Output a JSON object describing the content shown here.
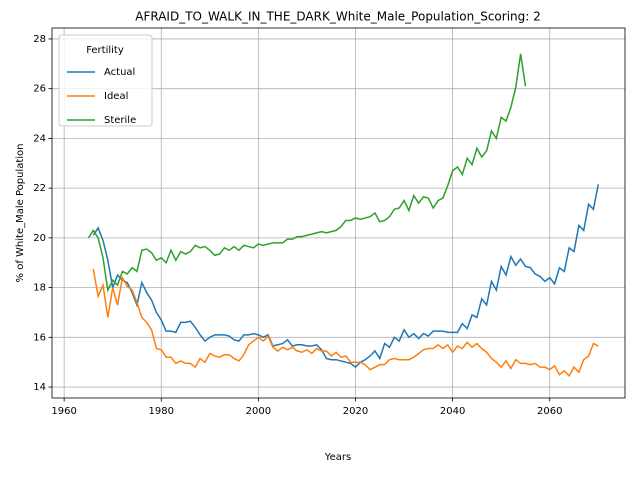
{
  "chart_data": {
    "type": "line",
    "title": "AFRAID_TO_WALK_IN_THE_DARK_White_Male_Population_Scoring: 2",
    "xlabel": "Years",
    "ylabel": "% of White_Male Population",
    "x": [
      1965,
      1966,
      1967,
      1968,
      1969,
      1970,
      1971,
      1972,
      1973,
      1974,
      1975,
      1976,
      1977,
      1978,
      1979,
      1980,
      1981,
      1982,
      1983,
      1984,
      1985,
      1986,
      1987,
      1988,
      1989,
      1990,
      1991,
      1992,
      1993,
      1994,
      1995,
      1996,
      1997,
      1998,
      1999,
      2000,
      2001,
      2002,
      2003,
      2004,
      2005,
      2006,
      2007,
      2008,
      2009,
      2010,
      2011,
      2012,
      2013,
      2014,
      2015,
      2016,
      2017,
      2018,
      2019,
      2020,
      2021,
      2022,
      2023,
      2024,
      2025,
      2026,
      2027,
      2028,
      2029,
      2030,
      2031,
      2032,
      2033,
      2034,
      2035,
      2036,
      2037,
      2038,
      2039,
      2040,
      2041,
      2042,
      2043,
      2044,
      2045,
      2046,
      2047,
      2048,
      2049,
      2050,
      2051,
      2052,
      2053,
      2054,
      2055,
      2056,
      2057,
      2058,
      2059,
      2060,
      2061,
      2062,
      2063,
      2064,
      2065,
      2066,
      2067,
      2068,
      2069,
      2070
    ],
    "series": [
      {
        "name": "Actual",
        "color": "#1f77b4",
        "values": [
          null,
          20.1,
          20.4,
          19.9,
          19.1,
          18.0,
          18.5,
          18.3,
          18.2,
          17.8,
          17.3,
          18.2,
          17.8,
          17.5,
          17.0,
          16.7,
          16.25,
          16.25,
          16.2,
          16.6,
          16.6,
          16.65,
          16.4,
          16.1,
          15.85,
          16.0,
          16.1,
          16.1,
          16.1,
          16.05,
          15.9,
          15.85,
          16.1,
          16.1,
          16.15,
          16.1,
          16.0,
          16.1,
          15.65,
          15.7,
          15.75,
          15.9,
          15.65,
          15.7,
          15.7,
          15.65,
          15.65,
          15.7,
          15.5,
          15.15,
          15.1,
          15.1,
          15.05,
          15.0,
          14.95,
          14.8,
          15.0,
          15.1,
          15.25,
          15.45,
          15.15,
          15.75,
          15.6,
          16.0,
          15.85,
          16.3,
          16.0,
          16.15,
          15.95,
          16.15,
          16.05,
          16.25,
          16.25,
          16.25,
          16.2,
          16.2,
          16.2,
          16.55,
          16.35,
          16.9,
          16.8,
          17.55,
          17.3,
          18.25,
          17.9,
          18.85,
          18.5,
          19.25,
          18.9,
          19.15,
          18.85,
          18.8,
          18.55,
          18.45,
          18.25,
          18.4,
          18.15,
          18.8,
          18.65,
          19.6,
          19.45,
          20.5,
          20.3,
          21.35,
          21.15,
          22.15
        ]
      },
      {
        "name": "Ideal",
        "color": "#ff7f0e",
        "values": [
          null,
          18.75,
          17.65,
          18.1,
          16.8,
          18.0,
          17.3,
          18.4,
          18.05,
          17.9,
          17.4,
          16.8,
          16.6,
          16.3,
          15.55,
          15.5,
          15.2,
          15.2,
          14.95,
          15.05,
          14.95,
          14.95,
          14.8,
          15.15,
          15.0,
          15.35,
          15.25,
          15.2,
          15.3,
          15.3,
          15.15,
          15.05,
          15.3,
          15.7,
          15.85,
          16.0,
          15.85,
          16.05,
          15.6,
          15.45,
          15.6,
          15.5,
          15.6,
          15.45,
          15.4,
          15.5,
          15.35,
          15.55,
          15.45,
          15.45,
          15.25,
          15.4,
          15.2,
          15.25,
          15.0,
          15.0,
          15.0,
          14.9,
          14.7,
          14.8,
          14.9,
          14.9,
          15.1,
          15.15,
          15.1,
          15.1,
          15.1,
          15.2,
          15.35,
          15.5,
          15.55,
          15.55,
          15.7,
          15.55,
          15.7,
          15.4,
          15.65,
          15.55,
          15.8,
          15.6,
          15.75,
          15.55,
          15.4,
          15.15,
          15.0,
          14.8,
          15.05,
          14.75,
          15.1,
          14.95,
          14.95,
          14.9,
          14.95,
          14.8,
          14.8,
          14.7,
          14.85,
          14.5,
          14.65,
          14.45,
          14.8,
          14.6,
          15.1,
          15.25,
          15.75,
          15.65
        ]
      },
      {
        "name": "Sterile",
        "color": "#2ca02c",
        "values": [
          20.0,
          20.3,
          20.0,
          19.2,
          17.9,
          18.3,
          18.1,
          18.65,
          18.55,
          18.8,
          18.65,
          19.5,
          19.55,
          19.4,
          19.1,
          19.2,
          19.0,
          19.5,
          19.1,
          19.45,
          19.35,
          19.45,
          19.7,
          19.6,
          19.65,
          19.5,
          19.3,
          19.35,
          19.6,
          19.5,
          19.65,
          19.5,
          19.7,
          19.65,
          19.6,
          19.75,
          19.7,
          19.75,
          19.8,
          19.8,
          19.8,
          19.95,
          19.95,
          20.05,
          20.05,
          20.1,
          20.15,
          20.2,
          20.25,
          20.2,
          20.25,
          20.3,
          20.45,
          20.7,
          20.7,
          20.8,
          20.75,
          20.8,
          20.85,
          21.0,
          20.65,
          20.7,
          20.85,
          21.15,
          21.2,
          21.5,
          21.1,
          21.7,
          21.4,
          21.65,
          21.6,
          21.2,
          21.5,
          21.6,
          22.1,
          22.7,
          22.85,
          22.55,
          23.2,
          22.95,
          23.6,
          23.25,
          23.5,
          24.3,
          24.0,
          24.85,
          24.7,
          25.25,
          26.05,
          27.4,
          26.1,
          null,
          null,
          null,
          null,
          null,
          null,
          null,
          null,
          null,
          null,
          null,
          null,
          null,
          null,
          null
        ]
      }
    ],
    "xlim": [
      1957.5,
      2075.5
    ],
    "xticks": [
      1960,
      1980,
      2000,
      2020,
      2040,
      2060
    ],
    "ylim": [
      13.56,
      28.44
    ],
    "yticks": [
      14,
      16,
      18,
      20,
      22,
      24,
      26,
      28
    ],
    "grid": true,
    "legend_title": "Fertility",
    "legend_position": "upper left"
  }
}
